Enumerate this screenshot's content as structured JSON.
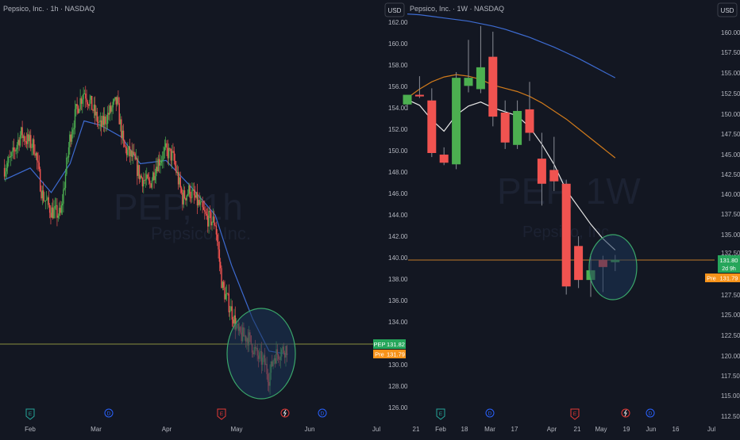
{
  "colors": {
    "bg": "#131722",
    "axis_text": "#b2b5be",
    "up": "#4caf50",
    "down": "#f05350",
    "wick": "#888b94",
    "sma_fast": "#e6e6e6",
    "sma_mid": "#d07a1b",
    "sma_slow": "#3d6bd1",
    "price_line": "#8a8f3f",
    "circle_fill": "#1b3557",
    "circle_stroke": "#3aa66a",
    "badge_green": "#26a65b",
    "badge_orange": "#f7931a",
    "watermark": "#1c2232",
    "event_green": "#26a69a",
    "event_blue": "#2962ff",
    "event_red": "#e53935"
  },
  "left_panel": {
    "title": "Pepsico, Inc. · 1h · NASDAQ",
    "watermark_symbol": "PEP, 1h",
    "watermark_name": "Pepsico, Inc.",
    "y_ticks": [
      "162.00",
      "160.00",
      "158.00",
      "156.00",
      "154.00",
      "152.00",
      "150.00",
      "148.00",
      "146.00",
      "144.00",
      "142.00",
      "140.00",
      "138.00",
      "136.00",
      "134.00",
      "132.00",
      "130.00",
      "128.00",
      "126.00"
    ],
    "x_ticks": [
      "Feb",
      "Mar",
      "Apr",
      "May",
      "Jun",
      "Jul"
    ],
    "badge_symbol": "PEP",
    "badge_price": "131.82",
    "badge_pre": "Pre",
    "badge_pre_price": "131.79",
    "events": [
      "E",
      "D",
      "E",
      "",
      "D"
    ]
  },
  "right_panel": {
    "title": "Pepsico, Inc. · 1W · NASDAQ",
    "currency": "USD",
    "watermark_symbol": "PEP, 1W",
    "watermark_name": "Pepsico, Inc.",
    "y_ticks": [
      "160.00",
      "157.50",
      "155.00",
      "152.50",
      "150.00",
      "147.50",
      "145.00",
      "142.50",
      "140.00",
      "137.50",
      "135.00",
      "132.50",
      "130.00",
      "127.50",
      "125.00",
      "122.50",
      "120.00",
      "117.50",
      "115.00",
      "112.50"
    ],
    "x_ticks": [
      "21",
      "Feb",
      "18",
      "Mar",
      "17",
      "Apr",
      "21",
      "May",
      "19",
      "Jun",
      "16",
      "Jul"
    ],
    "badge_price": "131.80",
    "badge_countdown": "2d 9h",
    "badge_pre": "Pre",
    "badge_pre_price": "131.79",
    "events": [
      "E",
      "D",
      "E",
      "",
      "D"
    ]
  },
  "chart_data": [
    {
      "type": "candlestick",
      "title": "Pepsico, Inc. · 1h · NASDAQ",
      "ylim": [
        125,
        162.5
      ],
      "last_price": 131.82,
      "pre_market": 131.79,
      "path_anchors": [
        {
          "x": "Jan 21",
          "y": 148.6
        },
        {
          "x": "Jan 24",
          "y": 149.5
        },
        {
          "x": "Jan 28",
          "y": 151.8
        },
        {
          "x": "Feb 3",
          "y": 150.5
        },
        {
          "x": "Feb 6",
          "y": 146.2
        },
        {
          "x": "Feb 10",
          "y": 144.6
        },
        {
          "x": "Feb 14",
          "y": 144.2
        },
        {
          "x": "Feb 18",
          "y": 151.5
        },
        {
          "x": "Feb 21",
          "y": 154.2
        },
        {
          "x": "Feb 24",
          "y": 155.8
        },
        {
          "x": "Feb 27",
          "y": 154.5
        },
        {
          "x": "Mar 3",
          "y": 152.4
        },
        {
          "x": "Mar 6",
          "y": 153.5
        },
        {
          "x": "Mar 10",
          "y": 154.8
        },
        {
          "x": "Mar 13",
          "y": 150.5
        },
        {
          "x": "Mar 17",
          "y": 149.5
        },
        {
          "x": "Mar 20",
          "y": 147.8
        },
        {
          "x": "Mar 24",
          "y": 147.0
        },
        {
          "x": "Mar 27",
          "y": 149.0
        },
        {
          "x": "Mar 31",
          "y": 150.2
        },
        {
          "x": "Apr 3",
          "y": 149.6
        },
        {
          "x": "Apr 7",
          "y": 145.8
        },
        {
          "x": "Apr 10",
          "y": 146.5
        },
        {
          "x": "Apr 14",
          "y": 145.2
        },
        {
          "x": "Apr 17",
          "y": 144.0
        },
        {
          "x": "Apr 21",
          "y": 143.5
        },
        {
          "x": "Apr 24",
          "y": 137.5
        },
        {
          "x": "Apr 28",
          "y": 135.2
        },
        {
          "x": "May 1",
          "y": 133.0
        },
        {
          "x": "May 5",
          "y": 132.8
        },
        {
          "x": "May 9",
          "y": 131.0
        },
        {
          "x": "May 12",
          "y": 130.4
        },
        {
          "x": "May 14",
          "y": 129.0
        },
        {
          "x": "May 16",
          "y": 131.0
        },
        {
          "x": "May 19",
          "y": 131.5
        },
        {
          "x": "May 22",
          "y": 131.82
        }
      ],
      "sma": [
        {
          "x": "Jan 21",
          "y": 147.5
        },
        {
          "x": "Feb 1",
          "y": 148.6
        },
        {
          "x": "Feb 10",
          "y": 146.3
        },
        {
          "x": "Feb 18",
          "y": 149.0
        },
        {
          "x": "Feb 24",
          "y": 153.0
        },
        {
          "x": "Mar 3",
          "y": 152.6
        },
        {
          "x": "Mar 12",
          "y": 151.5
        },
        {
          "x": "Mar 20",
          "y": 149.0
        },
        {
          "x": "Mar 31",
          "y": 149.3
        },
        {
          "x": "Apr 10",
          "y": 147.0
        },
        {
          "x": "Apr 21",
          "y": 144.2
        },
        {
          "x": "Apr 28",
          "y": 139.5
        },
        {
          "x": "May 7",
          "y": 134.5
        },
        {
          "x": "May 14",
          "y": 131.5
        },
        {
          "x": "May 22",
          "y": 131.2
        }
      ]
    },
    {
      "type": "candlestick",
      "title": "Pepsico, Inc. · 1W · NASDAQ",
      "ylim": [
        111.25,
        162.5
      ],
      "last_price": 131.8,
      "pre_market": 131.79,
      "candles": [
        {
          "week": "Jan 13",
          "open": 151.0,
          "high": 152.0,
          "low": 150.3,
          "close": 152.2
        },
        {
          "week": "Jan 20",
          "open": 152.2,
          "high": 154.5,
          "low": 151.8,
          "close": 152.0
        },
        {
          "week": "Jan 27",
          "open": 151.5,
          "high": 153.0,
          "low": 144.5,
          "close": 145.0
        },
        {
          "week": "Feb 3",
          "open": 144.8,
          "high": 145.7,
          "low": 143.5,
          "close": 143.8
        },
        {
          "week": "Feb 10",
          "open": 143.6,
          "high": 155.0,
          "low": 143.0,
          "close": 154.3
        },
        {
          "week": "Feb 17",
          "open": 153.3,
          "high": 159.0,
          "low": 152.5,
          "close": 154.3
        },
        {
          "week": "Feb 24",
          "open": 152.9,
          "high": 160.7,
          "low": 152.4,
          "close": 155.6
        },
        {
          "week": "Mar 3",
          "open": 156.9,
          "high": 160.0,
          "low": 148.3,
          "close": 149.5
        },
        {
          "week": "Mar 10",
          "open": 150.0,
          "high": 151.5,
          "low": 145.5,
          "close": 146.3
        },
        {
          "week": "Mar 17",
          "open": 146.0,
          "high": 151.5,
          "low": 145.5,
          "close": 150.2
        },
        {
          "week": "Mar 24",
          "open": 150.4,
          "high": 153.8,
          "low": 146.5,
          "close": 147.5
        },
        {
          "week": "Mar 31",
          "open": 144.3,
          "high": 147.5,
          "low": 138.5,
          "close": 141.2
        },
        {
          "week": "Apr 7",
          "open": 142.9,
          "high": 147.0,
          "low": 140.3,
          "close": 141.5
        },
        {
          "week": "Apr 14",
          "open": 141.2,
          "high": 141.7,
          "low": 127.5,
          "close": 128.5
        },
        {
          "week": "Apr 21",
          "open": 133.5,
          "high": 134.7,
          "low": 128.3,
          "close": 129.3
        },
        {
          "week": "Apr 28",
          "open": 129.3,
          "high": 132.5,
          "low": 127.2,
          "close": 130.5
        },
        {
          "week": "May 5",
          "open": 131.8,
          "high": 132.3,
          "low": 127.8,
          "close": 130.9
        },
        {
          "week": "May 12",
          "open": 131.5,
          "high": 132.4,
          "low": 130.4,
          "close": 131.8
        }
      ],
      "ma_white": [
        {
          "week": "Jan 13",
          "y": 151.6
        },
        {
          "week": "Jan 20",
          "y": 150.9
        },
        {
          "week": "Jan 27",
          "y": 149.1
        },
        {
          "week": "Feb 3",
          "y": 147.7
        },
        {
          "week": "Feb 10",
          "y": 149.7
        },
        {
          "week": "Feb 17",
          "y": 150.8
        },
        {
          "week": "Feb 24",
          "y": 151.3
        },
        {
          "week": "Mar 3",
          "y": 150.6
        },
        {
          "week": "Mar 10",
          "y": 150.1
        },
        {
          "week": "Mar 17",
          "y": 149.6
        },
        {
          "week": "Mar 24",
          "y": 148.2
        },
        {
          "week": "Mar 31",
          "y": 146.1
        },
        {
          "week": "Apr 7",
          "y": 143.6
        },
        {
          "week": "Apr 14",
          "y": 140.4
        },
        {
          "week": "Apr 21",
          "y": 138.3
        },
        {
          "week": "Apr 28",
          "y": 136.2
        },
        {
          "week": "May 5",
          "y": 134.4
        },
        {
          "week": "May 12",
          "y": 133.0
        }
      ],
      "ma_orange": [
        {
          "week": "Jan 13",
          "y": 151.8
        },
        {
          "week": "Jan 20",
          "y": 152.9
        },
        {
          "week": "Jan 27",
          "y": 153.8
        },
        {
          "week": "Feb 3",
          "y": 154.4
        },
        {
          "week": "Feb 10",
          "y": 154.7
        },
        {
          "week": "Feb 17",
          "y": 154.5
        },
        {
          "week": "Feb 24",
          "y": 154.1
        },
        {
          "week": "Mar 3",
          "y": 153.4
        },
        {
          "week": "Mar 10",
          "y": 153.0
        },
        {
          "week": "Mar 17",
          "y": 152.6
        },
        {
          "week": "Mar 24",
          "y": 152.0
        },
        {
          "week": "Mar 31",
          "y": 151.2
        },
        {
          "week": "Apr 7",
          "y": 150.2
        },
        {
          "week": "Apr 14",
          "y": 149.2
        },
        {
          "week": "Apr 21",
          "y": 148.0
        },
        {
          "week": "Apr 28",
          "y": 146.8
        },
        {
          "week": "May 5",
          "y": 145.6
        },
        {
          "week": "May 12",
          "y": 144.4
        }
      ],
      "ma_blue": [
        {
          "week": "Jan 13",
          "y": 162.2
        },
        {
          "week": "Jan 20",
          "y": 162.1
        },
        {
          "week": "Jan 27",
          "y": 161.9
        },
        {
          "week": "Feb 3",
          "y": 161.7
        },
        {
          "week": "Feb 10",
          "y": 161.5
        },
        {
          "week": "Feb 17",
          "y": 161.3
        },
        {
          "week": "Feb 24",
          "y": 161.0
        },
        {
          "week": "Mar 3",
          "y": 160.7
        },
        {
          "week": "Mar 10",
          "y": 160.3
        },
        {
          "week": "Mar 17",
          "y": 159.8
        },
        {
          "week": "Mar 24",
          "y": 159.3
        },
        {
          "week": "Mar 31",
          "y": 158.7
        },
        {
          "week": "Apr 7",
          "y": 158.1
        },
        {
          "week": "Apr 14",
          "y": 157.4
        },
        {
          "week": "Apr 21",
          "y": 156.7
        },
        {
          "week": "Apr 28",
          "y": 155.9
        },
        {
          "week": "May 5",
          "y": 155.1
        },
        {
          "week": "May 12",
          "y": 154.3
        }
      ]
    }
  ]
}
